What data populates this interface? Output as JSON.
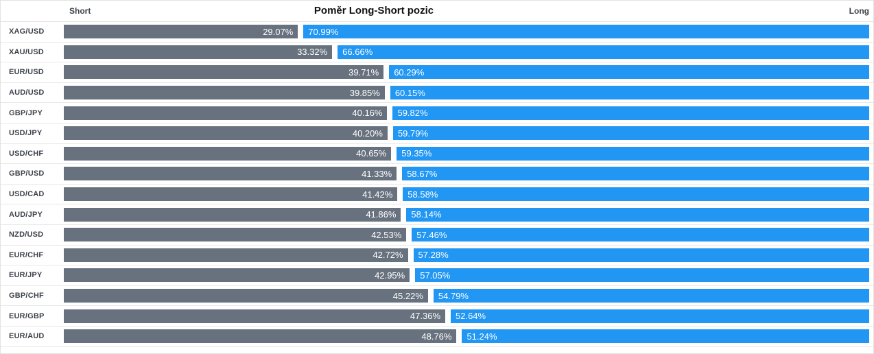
{
  "header": {
    "short_label": "Short",
    "title": "Poměr Long-Short pozic",
    "long_label": "Long"
  },
  "chart_data": {
    "type": "bar",
    "orientation": "horizontal-stacked",
    "title": "Poměr Long-Short pozic",
    "legend": [
      "Short",
      "Long"
    ],
    "legend_position": "top",
    "value_suffix": "%",
    "xlim": [
      0,
      100
    ],
    "grid": false,
    "categories": [
      "XAG/USD",
      "XAU/USD",
      "EUR/USD",
      "AUD/USD",
      "GBP/JPY",
      "USD/JPY",
      "USD/CHF",
      "GBP/USD",
      "USD/CAD",
      "AUD/JPY",
      "NZD/USD",
      "EUR/CHF",
      "EUR/JPY",
      "GBP/CHF",
      "EUR/GBP",
      "EUR/AUD"
    ],
    "series": [
      {
        "name": "Short",
        "color": "#68727e",
        "values": [
          29.07,
          33.32,
          39.71,
          39.85,
          40.16,
          40.2,
          40.65,
          41.33,
          41.42,
          41.86,
          42.53,
          42.72,
          42.95,
          45.22,
          47.36,
          48.76
        ]
      },
      {
        "name": "Long",
        "color": "#2196f3",
        "values": [
          70.99,
          66.66,
          60.29,
          60.15,
          59.82,
          59.79,
          59.35,
          58.67,
          58.58,
          58.14,
          57.46,
          57.28,
          57.05,
          54.79,
          52.64,
          51.24
        ]
      }
    ]
  },
  "colors": {
    "short_bar": "#68727e",
    "long_bar": "#2196f3",
    "border": "#e2e2e2",
    "row_divider": "#e8e8e8",
    "label_text": "#3d424a",
    "value_text": "#ffffff",
    "background": "#ffffff"
  }
}
